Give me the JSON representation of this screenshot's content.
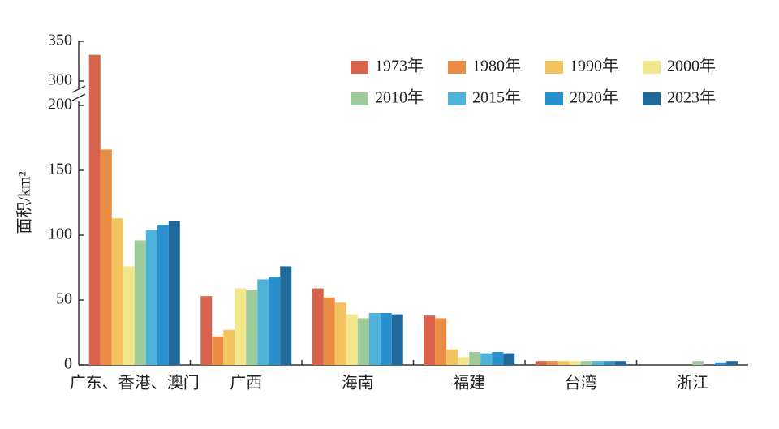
{
  "chart_data": {
    "type": "bar",
    "y_label": "面积/km²",
    "categories": [
      "广东、香港、澳门",
      "广西",
      "海南",
      "福建",
      "台湾",
      "浙江"
    ],
    "series": [
      {
        "name": "1973年",
        "color": "#d9634a",
        "values": [
          333,
          53,
          59,
          38,
          3,
          null
        ]
      },
      {
        "name": "1980年",
        "color": "#eb8c45",
        "values": [
          166,
          22,
          52,
          36,
          3,
          null
        ]
      },
      {
        "name": "1990年",
        "color": "#f2c35e",
        "values": [
          113,
          27,
          48,
          12,
          3,
          null
        ]
      },
      {
        "name": "2000年",
        "color": "#f2e68a",
        "values": [
          76,
          59,
          39,
          6,
          3,
          null
        ]
      },
      {
        "name": "2010年",
        "color": "#9dcb9a",
        "values": [
          96,
          58,
          36,
          10,
          3,
          3
        ]
      },
      {
        "name": "2015年",
        "color": "#4fb3d9",
        "values": [
          104,
          66,
          40,
          9,
          3,
          null
        ]
      },
      {
        "name": "2020年",
        "color": "#2a8fcf",
        "values": [
          108,
          68,
          40,
          10,
          3,
          2
        ]
      },
      {
        "name": "2023年",
        "color": "#1f6a9a",
        "values": [
          111,
          76,
          39,
          9,
          3,
          3
        ]
      }
    ],
    "ylim": [
      0,
      350
    ],
    "y_break": [
      200,
      300
    ],
    "yticks": [
      0,
      50,
      100,
      150,
      200,
      300,
      350
    ],
    "legend": "upper right"
  }
}
